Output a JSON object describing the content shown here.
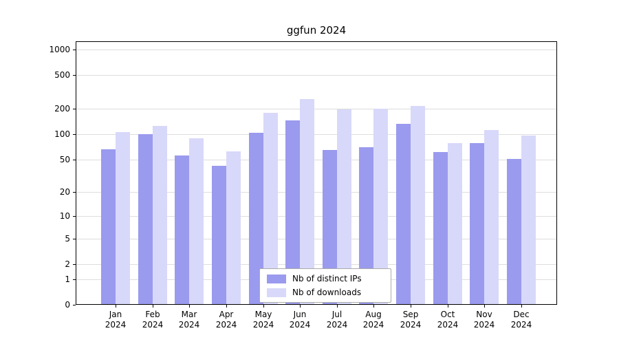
{
  "chart_data": {
    "type": "bar",
    "title": "ggfun 2024",
    "categories": [
      "Jan",
      "Feb",
      "Mar",
      "Apr",
      "May",
      "Jun",
      "Jul",
      "Aug",
      "Sep",
      "Oct",
      "Nov",
      "Dec"
    ],
    "year_label": "2024",
    "series": [
      {
        "name": "Nb of distinct IPs",
        "color": "#9a9aee",
        "values": [
          66,
          100,
          56,
          42,
          105,
          145,
          65,
          70,
          133,
          61,
          78,
          51
        ]
      },
      {
        "name": "Nb of downloads",
        "color": "#d8d8fa",
        "values": [
          106,
          126,
          90,
          63,
          180,
          260,
          195,
          200,
          215,
          78,
          112,
          96
        ]
      }
    ],
    "yticks": [
      0,
      1,
      2,
      5,
      10,
      20,
      50,
      100,
      200,
      500,
      1000
    ],
    "ylim": [
      0,
      1000
    ],
    "xlabel": "",
    "ylabel": "",
    "scale": "log1p",
    "grid": true,
    "legend_position": "lower center",
    "grid_color": "#dddddd",
    "text_color": "#000000",
    "background_color": "#ffffff"
  }
}
